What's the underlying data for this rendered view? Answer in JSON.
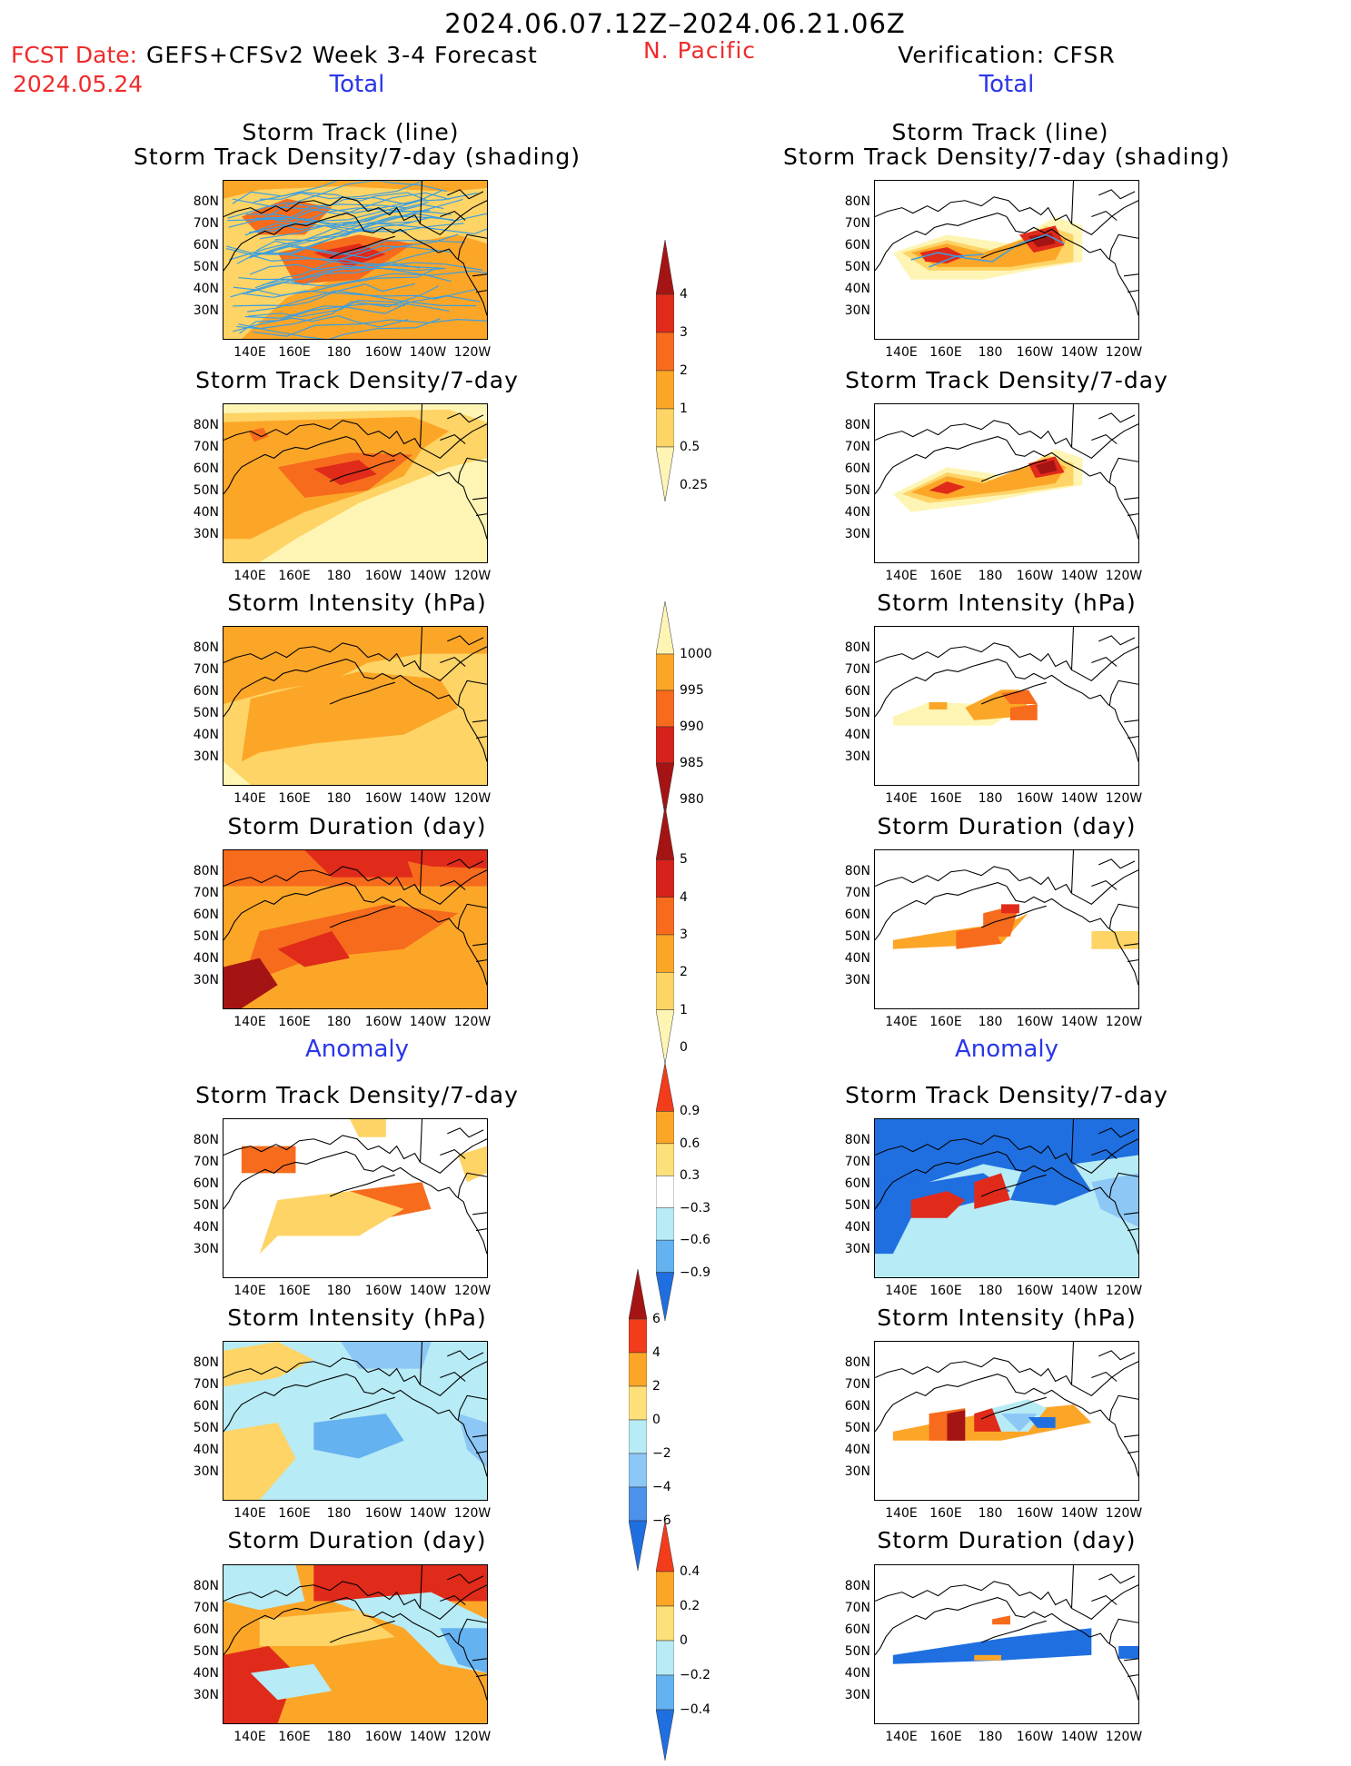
{
  "header": {
    "period": "2024.06.07.12Z–2024.06.21.06Z",
    "fcst_label": "FCST Date:",
    "model": "GEFS+CFSv2 Week 3-4 Forecast",
    "fcst_date": "2024.05.24",
    "region": "N. Pacific",
    "verification": "Verification: CFSR"
  },
  "sections": {
    "total_left": "Total",
    "total_right": "Total",
    "anomaly_left": "Anomaly",
    "anomaly_right": "Anomaly"
  },
  "titles": {
    "track_line": "Storm Track (line)",
    "track_shading": "Storm Track Density/7-day (shading)",
    "density": "Storm Track Density/7-day",
    "intensity": "Storm Intensity (hPa)",
    "duration": "Storm Duration (day)"
  },
  "axes": {
    "y_ticks": [
      "80N",
      "70N",
      "60N",
      "50N",
      "40N",
      "30N"
    ],
    "x_ticks": [
      "140E",
      "160E",
      "180",
      "160W",
      "140W",
      "120W"
    ]
  },
  "colorbars": {
    "density_total": {
      "labels": [
        "4",
        "3",
        "2",
        "1",
        "0.5",
        "0.25"
      ],
      "colors": [
        "#a51414",
        "#e02a1a",
        "#f76b1c",
        "#fca628",
        "#fdd465",
        "#fef5b5"
      ]
    },
    "intensity_total": {
      "labels": [
        "1000",
        "995",
        "990",
        "985",
        "980"
      ],
      "colors": [
        "#fef5b5",
        "#fca628",
        "#f76b1c",
        "#d5221a",
        "#a51414"
      ]
    },
    "duration_total": {
      "labels": [
        "5",
        "4",
        "3",
        "2",
        "1",
        "0"
      ],
      "colors": [
        "#a51414",
        "#d5221a",
        "#f76b1c",
        "#fca628",
        "#fdd465",
        "#fef5b5"
      ]
    },
    "density_anom": {
      "labels": [
        "0.9",
        "0.6",
        "0.3",
        "−0.3",
        "−0.6",
        "−0.9"
      ],
      "colors": [
        "#f33c1b",
        "#fca628",
        "#fde07a",
        "#ffffff",
        "#b7ebf5",
        "#65b2f0",
        "#1f6fe0"
      ]
    },
    "intensity_anom": {
      "labels": [
        "6",
        "4",
        "2",
        "0",
        "−2",
        "−4",
        "−6"
      ],
      "colors": [
        "#a51414",
        "#f33c1b",
        "#fca628",
        "#fde07a",
        "#b7ebf5",
        "#8cc7f5",
        "#4d91ea",
        "#1f6fe0"
      ]
    },
    "duration_anom": {
      "labels": [
        "0.4",
        "0.2",
        "0",
        "−0.2",
        "−0.4"
      ],
      "colors": [
        "#f33c1b",
        "#fca628",
        "#fde07a",
        "#b7ebf5",
        "#65b2f0",
        "#1f6fe0"
      ]
    }
  }
}
